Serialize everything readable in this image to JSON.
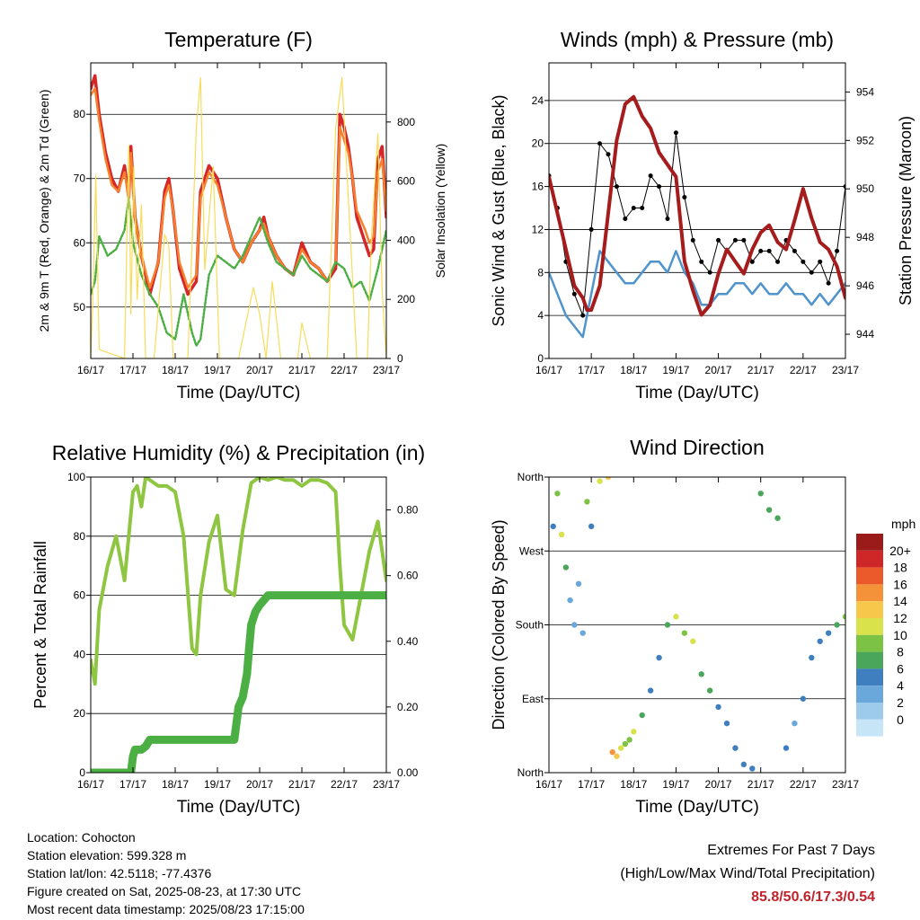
{
  "charts": {
    "temperature": {
      "title": "Temperature (F)",
      "xlabel": "Time (Day/UTC)",
      "ylabel": "2m & 9m T (Red, Orange) & 2m Td (Green)",
      "y2label": "Solar Insolation (Yellow)"
    },
    "winds": {
      "title": "Winds (mph) & Pressure (mb)",
      "xlabel": "Time (Day/UTC)",
      "ylabel": "Sonic Wind & Gust (Blue, Black)",
      "y2label": "Station Pressure (Maroon)"
    },
    "rh": {
      "title": "Relative Humidity (%) & Precipitation (in)",
      "xlabel": "Time (Day/UTC)",
      "ylabel": "Percent & Total Rainfall"
    },
    "wdir": {
      "title": "Wind Direction",
      "xlabel": "Time (Day/UTC)",
      "ylabel": "Direction (Colored By Speed)",
      "colorbar_title": "mph"
    }
  },
  "colors": {
    "temp2m": "#d62728",
    "temp9m": "#f5812e",
    "dewpoint": "#4caf43",
    "solar": "#f7dc5a",
    "wind": "#4f94cd",
    "gust": "#000000",
    "pressure": "#a61c1c",
    "rh": "#8ec641",
    "precip": "#4caf43",
    "speed_scale": [
      "#c6e6f8",
      "#9ccbeb",
      "#6aa8dc",
      "#3f7fc0",
      "#4aa65a",
      "#7cc244",
      "#d9e24a",
      "#f7c74b",
      "#f4923a",
      "#ea5a2b",
      "#cf2727",
      "#9b1a1a"
    ]
  },
  "chart_data": [
    {
      "type": "line",
      "name": "temperature",
      "x_ticks": [
        "16/17",
        "17/17",
        "18/17",
        "19/17",
        "20/17",
        "21/17",
        "22/17",
        "23/17"
      ],
      "ylim": [
        42,
        88
      ],
      "yticks": [
        50,
        60,
        70,
        80
      ],
      "y2lim": [
        0,
        1000
      ],
      "y2ticks": [
        0,
        200,
        400,
        600,
        800
      ],
      "grid": true,
      "series": [
        {
          "role": "2m T",
          "x": [
            0,
            0.1,
            0.2,
            0.35,
            0.5,
            0.65,
            0.8,
            0.9,
            0.95,
            1.05,
            1.2,
            1.4,
            1.6,
            1.75,
            1.85,
            1.95,
            2.1,
            2.3,
            2.5,
            2.6,
            2.8,
            3.0,
            3.2,
            3.4,
            3.6,
            3.8,
            4.0,
            4.1,
            4.2,
            4.4,
            4.6,
            4.8,
            5.0,
            5.2,
            5.4,
            5.6,
            5.8,
            5.9,
            6.0,
            6.1,
            6.2,
            6.3,
            6.5,
            6.6,
            6.7,
            6.8,
            6.9,
            7.0
          ],
          "y": [
            84,
            86,
            80,
            74,
            70,
            68,
            72,
            67,
            75,
            64,
            58,
            52,
            57,
            68,
            70,
            65,
            56,
            52,
            54,
            68,
            72,
            70,
            64,
            59,
            57,
            60,
            62,
            64,
            61,
            58,
            56,
            55,
            60,
            57,
            56,
            54,
            56,
            80,
            78,
            75,
            70,
            64,
            60,
            58,
            59,
            73,
            75,
            64
          ]
        },
        {
          "role": "9m T",
          "x": [
            0,
            0.1,
            0.2,
            0.35,
            0.5,
            0.65,
            0.8,
            0.9,
            0.95,
            1.05,
            1.2,
            1.4,
            1.6,
            1.75,
            1.85,
            1.95,
            2.1,
            2.3,
            2.5,
            2.6,
            2.8,
            3.0,
            3.2,
            3.4,
            3.6,
            3.8,
            4.0,
            4.1,
            4.2,
            4.4,
            4.6,
            4.8,
            5.0,
            5.2,
            5.4,
            5.6,
            5.8,
            5.9,
            6.0,
            6.1,
            6.2,
            6.3,
            6.5,
            6.6,
            6.7,
            6.8,
            6.9,
            7.0
          ],
          "y": [
            83,
            84,
            79,
            73,
            69,
            68,
            71,
            67,
            74,
            64,
            58,
            53,
            57,
            67,
            69,
            65,
            57,
            53,
            55,
            67,
            71,
            69,
            64,
            59,
            57,
            60,
            62,
            63,
            61,
            58,
            56,
            55,
            59,
            57,
            56,
            54,
            57,
            78,
            76,
            74,
            70,
            65,
            62,
            60,
            61,
            71,
            73,
            65
          ]
        },
        {
          "role": "2m Td",
          "x": [
            0,
            0.1,
            0.2,
            0.4,
            0.6,
            0.8,
            0.9,
            1.0,
            1.2,
            1.4,
            1.6,
            1.8,
            2.0,
            2.2,
            2.4,
            2.5,
            2.6,
            2.8,
            3.0,
            3.2,
            3.4,
            3.6,
            3.8,
            4.0,
            4.2,
            4.4,
            4.6,
            4.8,
            5.0,
            5.2,
            5.4,
            5.6,
            5.8,
            6.0,
            6.2,
            6.4,
            6.6,
            6.8,
            7.0
          ],
          "y": [
            52,
            54,
            61,
            58,
            59,
            62,
            67,
            60,
            55,
            52,
            50,
            46,
            45,
            52,
            46,
            44,
            45,
            55,
            58,
            57,
            56,
            58,
            61,
            64,
            60,
            57,
            56,
            55,
            58,
            56,
            55,
            54,
            57,
            56,
            53,
            54,
            51,
            56,
            62
          ]
        },
        {
          "role": "Solar",
          "axis": "y2",
          "x": [
            0,
            0.05,
            0.12,
            0.2,
            0.8,
            0.85,
            0.9,
            0.95,
            1.02,
            1.1,
            1.2,
            1.3,
            1.5,
            1.75,
            1.85,
            1.95,
            2.3,
            2.5,
            2.6,
            2.7,
            2.9,
            3.05,
            3.2,
            3.5,
            3.85,
            4.0,
            4.15,
            4.3,
            4.5,
            4.9,
            5.0,
            5.2,
            5.6,
            5.8,
            5.95,
            6.05,
            6.3,
            6.55,
            6.65,
            6.8,
            6.9,
            7.0
          ],
          "y": [
            0,
            200,
            620,
            30,
            0,
            350,
            720,
            150,
            650,
            200,
            520,
            0,
            0,
            420,
            380,
            0,
            0,
            780,
            950,
            300,
            650,
            0,
            0,
            0,
            240,
            150,
            0,
            260,
            0,
            0,
            120,
            0,
            0,
            780,
            950,
            680,
            0,
            0,
            420,
            760,
            230,
            0
          ]
        }
      ]
    },
    {
      "type": "line",
      "name": "winds",
      "x_ticks": [
        "16/17",
        "17/17",
        "18/17",
        "19/17",
        "20/17",
        "21/17",
        "22/17",
        "23/17"
      ],
      "ylim": [
        0,
        27.5
      ],
      "yticks": [
        0,
        4,
        8,
        12,
        16,
        20,
        24
      ],
      "y2lim": [
        943,
        955.2
      ],
      "y2ticks": [
        944,
        946,
        948,
        950,
        952,
        954
      ],
      "grid": true,
      "series": [
        {
          "role": "Wind",
          "x": [
            0,
            0.2,
            0.4,
            0.6,
            0.8,
            1.0,
            1.2,
            1.4,
            1.6,
            1.8,
            2.0,
            2.2,
            2.4,
            2.6,
            2.8,
            3.0,
            3.2,
            3.4,
            3.6,
            3.8,
            4.0,
            4.2,
            4.4,
            4.6,
            4.8,
            5.0,
            5.2,
            5.4,
            5.6,
            5.8,
            6.0,
            6.2,
            6.4,
            6.6,
            6.8,
            7.0
          ],
          "y": [
            8,
            6,
            4,
            3,
            2,
            6,
            10,
            9,
            8,
            7,
            7,
            8,
            9,
            9,
            8,
            10,
            8,
            7,
            5,
            5,
            6,
            6,
            7,
            7,
            6,
            7,
            6,
            6,
            7,
            6,
            6,
            5,
            6,
            5,
            6,
            7
          ]
        },
        {
          "role": "Gust",
          "x": [
            0,
            0.2,
            0.4,
            0.6,
            0.8,
            1.0,
            1.2,
            1.4,
            1.6,
            1.8,
            2.0,
            2.2,
            2.4,
            2.6,
            2.8,
            3.0,
            3.2,
            3.4,
            3.6,
            3.8,
            4.0,
            4.2,
            4.4,
            4.6,
            4.8,
            5.0,
            5.2,
            5.4,
            5.6,
            5.8,
            6.0,
            6.2,
            6.4,
            6.6,
            6.8,
            7.0
          ],
          "y": [
            17,
            14,
            9,
            6,
            4,
            12,
            20,
            19,
            16,
            13,
            14,
            14,
            17,
            16,
            13,
            21,
            15,
            11,
            9,
            8,
            11,
            10,
            11,
            11,
            9,
            10,
            10,
            9,
            11,
            10,
            9,
            8,
            9,
            7,
            10,
            16
          ]
        },
        {
          "role": "Pressure",
          "axis": "y2",
          "x": [
            0,
            0.2,
            0.4,
            0.6,
            0.8,
            0.9,
            1.0,
            1.2,
            1.4,
            1.6,
            1.8,
            2.0,
            2.2,
            2.4,
            2.6,
            2.8,
            3.0,
            3.2,
            3.4,
            3.6,
            3.8,
            4.0,
            4.2,
            4.4,
            4.6,
            4.8,
            5.0,
            5.2,
            5.4,
            5.6,
            5.8,
            6.0,
            6.2,
            6.4,
            6.6,
            6.8,
            7.0
          ],
          "y": [
            950.5,
            949,
            947.5,
            946,
            945.5,
            945,
            945,
            946,
            949,
            952,
            953.5,
            953.8,
            953,
            952.5,
            951.5,
            951,
            950.5,
            947,
            945.8,
            944.8,
            945.2,
            946.5,
            947.5,
            947,
            946.5,
            947.5,
            948.2,
            948.5,
            947.8,
            947.5,
            948.7,
            950,
            948.8,
            947.8,
            947.5,
            946.8,
            945.5
          ]
        }
      ]
    },
    {
      "type": "line",
      "name": "rh",
      "x_ticks": [
        "16/17",
        "17/17",
        "18/17",
        "19/17",
        "20/17",
        "21/17",
        "22/17",
        "23/17"
      ],
      "ylim": [
        0,
        100
      ],
      "yticks": [
        0,
        20,
        40,
        60,
        80,
        100
      ],
      "y2lim": [
        0,
        0.9
      ],
      "y2ticks": [
        0.0,
        0.2,
        0.4,
        0.6,
        0.8
      ],
      "y2ticklabels": [
        "0.00",
        "0.20",
        "0.40",
        "0.60",
        "0.80"
      ],
      "grid": true,
      "series": [
        {
          "role": "RH",
          "x": [
            0,
            0.1,
            0.2,
            0.4,
            0.6,
            0.8,
            1.0,
            1.1,
            1.2,
            1.3,
            1.4,
            1.6,
            1.8,
            2.0,
            2.2,
            2.4,
            2.5,
            2.6,
            2.8,
            3.0,
            3.2,
            3.4,
            3.6,
            3.8,
            4.0,
            4.2,
            4.4,
            4.6,
            4.8,
            5.0,
            5.2,
            5.4,
            5.6,
            5.8,
            5.9,
            6.0,
            6.2,
            6.4,
            6.6,
            6.8,
            7.0
          ],
          "y": [
            38,
            30,
            55,
            70,
            80,
            65,
            95,
            97,
            90,
            100,
            99,
            97,
            97,
            95,
            80,
            42,
            40,
            60,
            78,
            87,
            62,
            60,
            82,
            98,
            100,
            99,
            100,
            99,
            99,
            97,
            99,
            99,
            98,
            95,
            70,
            50,
            45,
            60,
            75,
            85,
            65
          ]
        },
        {
          "role": "Precip",
          "axis": "y2",
          "x": [
            0,
            0.5,
            0.95,
            1.0,
            1.05,
            1.2,
            1.3,
            1.4,
            3.4,
            3.5,
            3.6,
            3.7,
            3.75,
            3.8,
            3.9,
            4.0,
            4.2,
            4.5,
            5.0,
            6.0,
            7.0
          ],
          "y": [
            0,
            0,
            0,
            0.05,
            0.07,
            0.07,
            0.08,
            0.1,
            0.1,
            0.2,
            0.23,
            0.3,
            0.38,
            0.45,
            0.49,
            0.51,
            0.54,
            0.54,
            0.54,
            0.54,
            0.54
          ]
        }
      ]
    },
    {
      "type": "scatter",
      "name": "wdir",
      "x_ticks": [
        "16/17",
        "17/17",
        "18/17",
        "19/17",
        "20/17",
        "21/17",
        "22/17",
        "23/17"
      ],
      "ylim": [
        0,
        360
      ],
      "ytick_values": [
        0,
        90,
        180,
        270,
        360
      ],
      "yticklabels": [
        "North",
        "East",
        "South",
        "West",
        "North"
      ],
      "grid": true,
      "colorbar_labels": [
        "0",
        "2",
        "4",
        "6",
        "8",
        "10",
        "12",
        "14",
        "16",
        "18",
        "20+"
      ],
      "series": [
        {
          "role": "Direction",
          "x": [
            0.1,
            0.2,
            0.3,
            0.4,
            0.5,
            0.6,
            0.7,
            0.8,
            0.9,
            1.0,
            1.2,
            1.4,
            1.5,
            1.6,
            1.7,
            1.8,
            1.9,
            2.0,
            2.2,
            2.4,
            2.6,
            2.8,
            3.0,
            3.2,
            3.4,
            3.6,
            3.8,
            4.0,
            4.2,
            4.4,
            4.6,
            4.8,
            5.0,
            5.2,
            5.4,
            5.6,
            5.8,
            6.0,
            6.2,
            6.4,
            6.6,
            6.8,
            7.0
          ],
          "y": [
            300,
            340,
            290,
            250,
            210,
            180,
            230,
            170,
            330,
            300,
            355,
            360,
            25,
            20,
            30,
            35,
            40,
            50,
            70,
            100,
            140,
            180,
            190,
            170,
            160,
            120,
            100,
            80,
            60,
            30,
            10,
            5,
            340,
            320,
            310,
            30,
            60,
            90,
            140,
            160,
            170,
            180,
            190
          ],
          "speed": [
            4,
            8,
            10,
            6,
            3,
            2,
            3,
            2,
            8,
            4,
            10,
            12,
            14,
            12,
            10,
            8,
            9,
            10,
            6,
            5,
            5,
            6,
            10,
            9,
            11,
            7,
            6,
            5,
            5,
            4,
            5,
            4,
            6,
            6,
            7,
            4,
            3,
            4,
            5,
            4,
            5,
            6,
            8
          ]
        }
      ]
    }
  ],
  "footer": {
    "location": "Location: Cohocton",
    "elevation": "Station elevation: 599.328 m",
    "latlon": "Station lat/lon: 42.5118; -77.4376",
    "created": "Figure created on Sat, 2025-08-23, at 17:30 UTC",
    "recent": "Most recent data timestamp: 2025/08/23 17:15:00",
    "extremes_title": "Extremes For Past 7 Days",
    "extremes_subtitle": "(High/Low/Max Wind/Total Precipitation)",
    "extremes_values": "85.8/50.6/17.3/0.54"
  }
}
